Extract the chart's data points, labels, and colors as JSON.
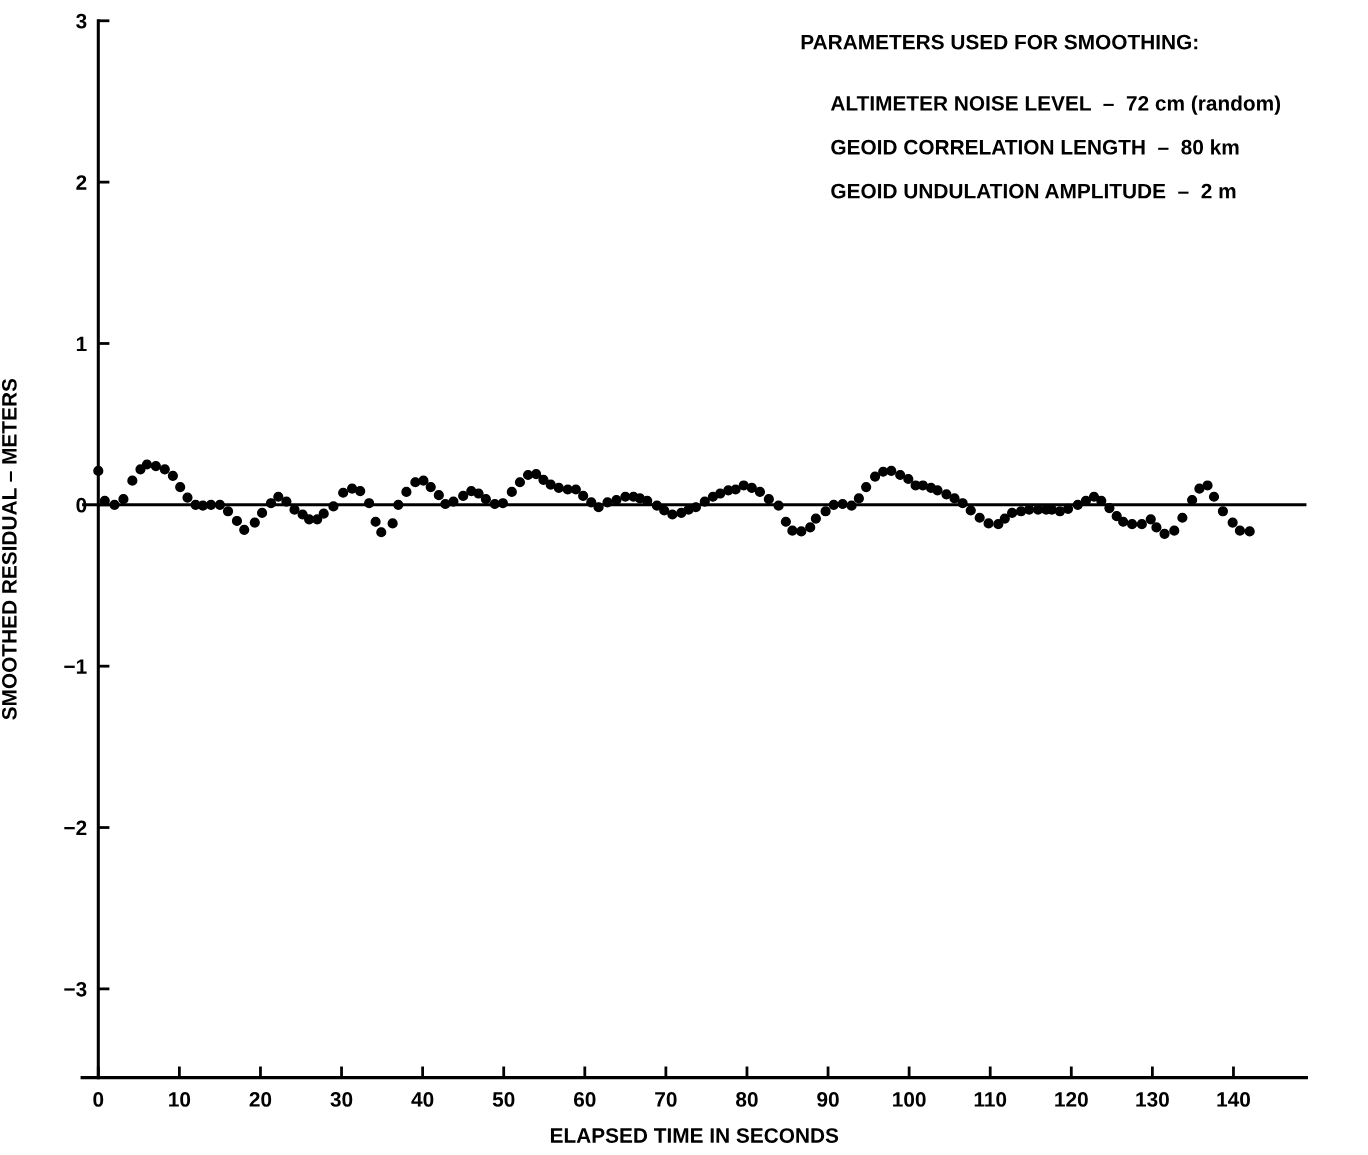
{
  "chart_data": {
    "type": "scatter",
    "xlabel": "ELAPSED TIME IN SECONDS",
    "ylabel": "SMOOTHED RESIDUAL – METERS",
    "xlim": [
      -2,
      149
    ],
    "ylim": [
      -3.55,
      3
    ],
    "xticks": [
      0,
      10,
      20,
      30,
      40,
      50,
      60,
      70,
      80,
      90,
      100,
      110,
      120,
      130,
      140
    ],
    "yticks": [
      {
        "value": -3,
        "label": "−3"
      },
      {
        "value": -2,
        "label": "−2"
      },
      {
        "value": -1,
        "label": "−1"
      },
      0,
      1,
      2,
      3
    ],
    "grid": false,
    "marker": "circle",
    "ref_lines": [
      {
        "axis": "y",
        "value": 0,
        "color": "#000000"
      }
    ],
    "annotations": [
      "PARAMETERS USED FOR SMOOTHING:",
      "ALTIMETER NOISE LEVEL  –  72 cm (random)",
      "GEOID CORRELATION LENGTH  –  80 km",
      "GEOID UNDULATION AMPLITUDE  –  2 m"
    ],
    "series": [
      {
        "color": "#000000",
        "x": [
          0,
          0.8,
          2,
          3.1,
          4.2,
          5.2,
          6.0,
          7.1,
          8.2,
          9.2,
          10.1,
          11.0,
          12.0,
          12.9,
          13.9,
          15.0,
          16.0,
          17.1,
          18.0,
          19.3,
          20.2,
          21.3,
          22.2,
          23.2,
          24.2,
          25.2,
          26.0,
          27.0,
          27.8,
          29.0,
          30.2,
          31.3,
          32.3,
          33.4,
          34.2,
          34.9,
          36.3,
          37.0,
          38.0,
          39.1,
          40.1,
          41.0,
          42.0,
          42.8,
          43.8,
          45.0,
          46.0,
          46.9,
          47.8,
          48.9,
          49.9,
          51.0,
          52.0,
          53.0,
          54.0,
          54.9,
          55.8,
          56.8,
          57.9,
          58.9,
          59.8,
          60.8,
          61.7,
          62.8,
          63.9,
          65.0,
          66.0,
          66.8,
          67.7,
          68.9,
          69.8,
          70.8,
          71.9,
          72.8,
          73.7,
          74.8,
          75.8,
          76.7,
          77.7,
          78.6,
          79.6,
          80.6,
          81.6,
          82.7,
          83.9,
          84.8,
          85.6,
          86.7,
          87.8,
          88.5,
          89.7,
          90.7,
          91.8,
          92.9,
          93.8,
          94.7,
          95.8,
          96.8,
          97.8,
          98.9,
          99.9,
          100.8,
          101.7,
          102.7,
          103.5,
          104.6,
          105.6,
          106.6,
          107.6,
          108.7,
          109.8,
          111.0,
          111.8,
          112.7,
          113.8,
          114.8,
          115.9,
          116.9,
          117.6,
          118.6,
          119.6,
          120.8,
          121.8,
          122.8,
          123.7,
          124.7,
          125.6,
          126.4,
          127.5,
          128.7,
          129.8,
          130.5,
          131.5,
          132.7,
          133.7,
          134.9,
          135.8,
          136.8,
          137.6,
          138.7,
          139.9,
          140.8,
          142.0
        ],
        "values": [
          0.21,
          0.025,
          0,
          0.035,
          0.15,
          0.22,
          0.25,
          0.24,
          0.22,
          0.18,
          0.11,
          0.045,
          0,
          -0.005,
          0,
          0,
          -0.04,
          -0.1,
          -0.155,
          -0.11,
          -0.05,
          0.01,
          0.05,
          0.02,
          -0.03,
          -0.06,
          -0.09,
          -0.09,
          -0.055,
          -0.01,
          0.075,
          0.1,
          0.085,
          0.01,
          -0.105,
          -0.17,
          -0.115,
          0,
          0.08,
          0.14,
          0.15,
          0.11,
          0.06,
          0.005,
          0.02,
          0.055,
          0.085,
          0.07,
          0.035,
          0.005,
          0.01,
          0.08,
          0.14,
          0.185,
          0.19,
          0.155,
          0.125,
          0.105,
          0.095,
          0.095,
          0.055,
          0.015,
          -0.015,
          0.015,
          0.03,
          0.05,
          0.05,
          0.04,
          0.025,
          -0.005,
          -0.035,
          -0.06,
          -0.05,
          -0.03,
          -0.015,
          0.02,
          0.05,
          0.07,
          0.09,
          0.095,
          0.12,
          0.105,
          0.08,
          0.035,
          -0.005,
          -0.105,
          -0.16,
          -0.165,
          -0.14,
          -0.085,
          -0.04,
          0,
          0.005,
          -0.005,
          0.04,
          0.11,
          0.175,
          0.205,
          0.21,
          0.185,
          0.16,
          0.12,
          0.12,
          0.105,
          0.09,
          0.065,
          0.04,
          0.01,
          -0.035,
          -0.08,
          -0.115,
          -0.12,
          -0.085,
          -0.05,
          -0.04,
          -0.03,
          -0.03,
          -0.03,
          -0.03,
          -0.04,
          -0.025,
          0,
          0.025,
          0.05,
          0.025,
          -0.02,
          -0.07,
          -0.105,
          -0.12,
          -0.12,
          -0.09,
          -0.14,
          -0.18,
          -0.16,
          -0.08,
          0.03,
          0.1,
          0.12,
          0.05,
          -0.04,
          -0.11,
          -0.16,
          -0.165
        ]
      }
    ]
  }
}
